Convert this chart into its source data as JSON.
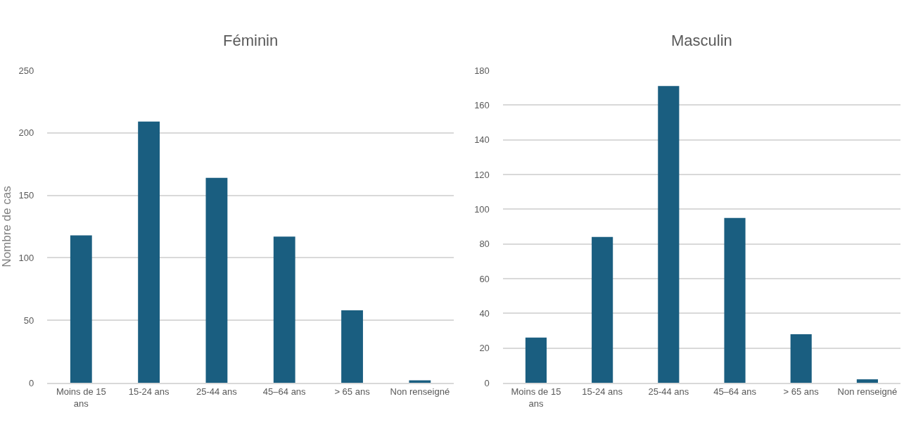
{
  "chart_data": [
    {
      "type": "bar",
      "title": "Féminin",
      "ylabel": "Nombre de cas",
      "categories": [
        "Moins de 15 ans",
        "15-24 ans",
        "25-44 ans",
        "45–64 ans",
        "> 65 ans",
        "Non renseigné"
      ],
      "values": [
        118,
        209,
        164,
        117,
        58,
        2
      ],
      "color": "#1a5e80",
      "ylim": [
        0,
        250
      ],
      "yticks": [
        0,
        50,
        100,
        150,
        200,
        250
      ],
      "grid": "y"
    },
    {
      "type": "bar",
      "title": "Masculin",
      "categories": [
        "Moins de 15 ans",
        "15-24 ans",
        "25-44 ans",
        "45–64 ans",
        "> 65 ans",
        "Non renseigné"
      ],
      "values": [
        26,
        84,
        171,
        95,
        28,
        2
      ],
      "color": "#1a5e80",
      "ylim": [
        0,
        180
      ],
      "yticks": [
        0,
        20,
        40,
        60,
        80,
        100,
        120,
        140,
        160,
        180
      ],
      "grid": "y"
    }
  ]
}
